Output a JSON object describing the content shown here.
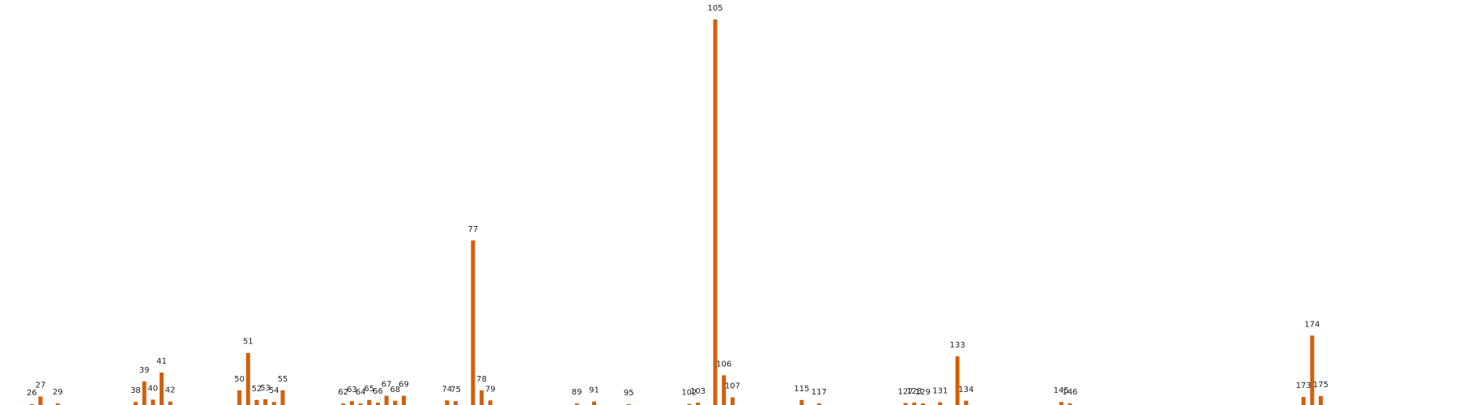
{
  "chart_data": {
    "type": "bar",
    "title": "",
    "xlabel": "",
    "ylabel": "",
    "grid": false,
    "legend": "none",
    "colors": {
      "bar": "#d35f0b"
    },
    "x_range": [
      19,
      181
    ],
    "ylim": [
      0,
      1000
    ],
    "categories": [
      "26",
      "27",
      "29",
      "38",
      "39",
      "40",
      "41",
      "42",
      "50",
      "51",
      "52",
      "53",
      "54",
      "55",
      "62",
      "63",
      "64",
      "65",
      "66",
      "67",
      "68",
      "69",
      "74",
      "75",
      "77",
      "78",
      "79",
      "89",
      "91",
      "95",
      "102",
      "103",
      "105",
      "106",
      "107",
      "115",
      "117",
      "127",
      "128",
      "129",
      "131",
      "133",
      "134",
      "145",
      "146",
      "173",
      "174",
      "175"
    ],
    "x": [
      26,
      27,
      29,
      38,
      39,
      40,
      41,
      42,
      50,
      51,
      52,
      53,
      54,
      55,
      62,
      63,
      64,
      65,
      66,
      67,
      68,
      69,
      74,
      75,
      77,
      78,
      79,
      89,
      91,
      95,
      102,
      103,
      105,
      106,
      107,
      115,
      117,
      127,
      128,
      129,
      131,
      133,
      134,
      145,
      146,
      173,
      174,
      175
    ],
    "values": [
      2,
      22,
      4,
      8,
      61,
      14,
      84,
      9,
      38,
      135,
      13,
      15,
      8,
      38,
      4,
      10,
      4,
      13,
      6,
      24,
      11,
      24,
      12,
      10,
      427,
      38,
      12,
      4,
      9,
      2,
      3,
      6,
      1000,
      77,
      20,
      13,
      4,
      5,
      6,
      4,
      7,
      126,
      11,
      8,
      4,
      21,
      180,
      23
    ]
  }
}
